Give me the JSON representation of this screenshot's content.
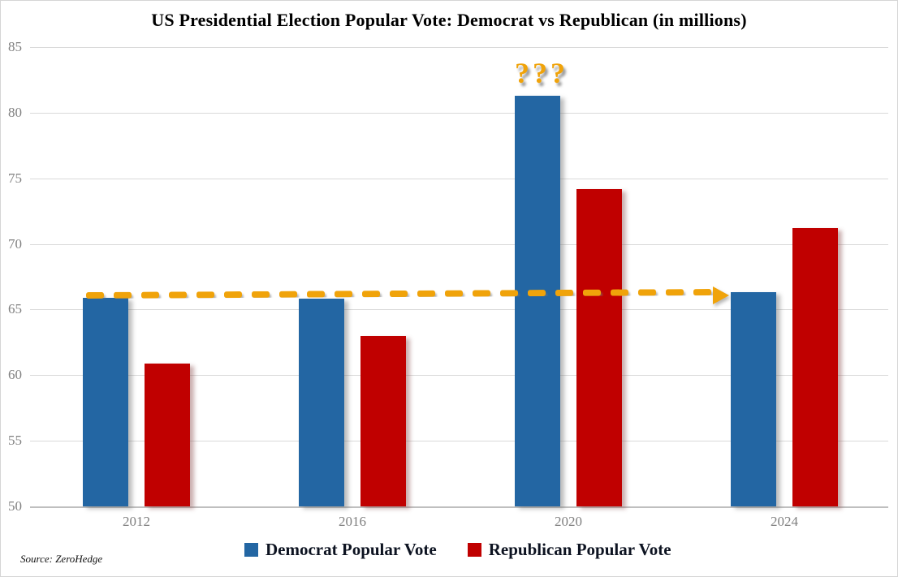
{
  "title": "US Presidential Election Popular Vote: Democrat vs Republican (in millions)",
  "source": "Source: ZeroHedge",
  "annotation": {
    "question_marks": "???",
    "arrow_note": "dashed horizontal arrow at ~66 million pointing from 2012 Democrat bar top to 2024 Democrat bar top"
  },
  "colors": {
    "democrat": "#2366a3",
    "republican": "#c00000",
    "arrow": "#f0a30a",
    "gridline": "#d9d9d9",
    "axis_text": "#808080",
    "title_text": "#000000",
    "legend_text": "#0d1321",
    "background": "#ffffff"
  },
  "chart_data": {
    "type": "bar",
    "title": "US Presidential Election Popular Vote: Democrat vs Republican (in millions)",
    "categories": [
      "2012",
      "2016",
      "2020",
      "2024"
    ],
    "series": [
      {
        "name": "Democrat Popular Vote",
        "color": "#2366a3",
        "values": [
          65.9,
          65.8,
          81.3,
          66.3
        ]
      },
      {
        "name": "Republican Popular Vote",
        "color": "#c00000",
        "values": [
          60.9,
          63.0,
          74.2,
          71.2
        ]
      }
    ],
    "xlabel": "",
    "ylabel": "",
    "ylim": [
      50,
      85
    ],
    "ytick_step": 5,
    "yticks": [
      50,
      55,
      60,
      65,
      70,
      75,
      80,
      85
    ],
    "grid": true,
    "legend_position": "bottom",
    "annotations": [
      {
        "type": "text",
        "text": "???",
        "target": "above 2020 Democrat bar",
        "color": "#f0a30a"
      },
      {
        "type": "arrow",
        "style": "dashed",
        "color": "#f0a30a",
        "y_value": 66.2,
        "from_category": "2012",
        "to_category": "2024",
        "description": "horizontal dashed arrow comparing Democrat vote level across elections"
      }
    ]
  }
}
